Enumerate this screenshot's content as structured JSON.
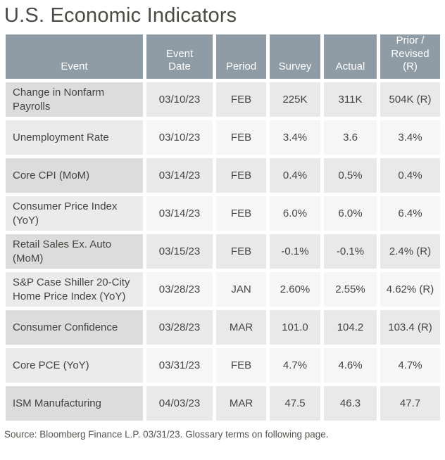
{
  "title": "U.S. Economic Indicators",
  "table": {
    "headers": [
      "Event",
      "Event\nDate",
      "Period",
      "Survey",
      "Actual",
      "Prior /\nRevised\n(R)"
    ],
    "rows": [
      {
        "event": "Change in Nonfarm Payrolls",
        "date": "03/10/23",
        "period": "FEB",
        "survey": "225K",
        "actual": "311K",
        "prior": "504K (R)"
      },
      {
        "event": "Unemployment Rate",
        "date": "03/10/23",
        "period": "FEB",
        "survey": "3.4%",
        "actual": "3.6",
        "prior": "3.4%"
      },
      {
        "event": "Core CPI (MoM)",
        "date": "03/14/23",
        "period": "FEB",
        "survey": "0.4%",
        "actual": "0.5%",
        "prior": "0.4%"
      },
      {
        "event": "Consumer Price Index (YoY)",
        "date": "03/14/23",
        "period": "FEB",
        "survey": "6.0%",
        "actual": "6.0%",
        "prior": "6.4%"
      },
      {
        "event": "Retail Sales Ex. Auto (MoM)",
        "date": "03/15/23",
        "period": "FEB",
        "survey": "-0.1%",
        "actual": "-0.1%",
        "prior": "2.4% (R)"
      },
      {
        "event": "S&P Case Shiller 20-City Home Price Index (YoY)",
        "date": "03/28/23",
        "period": "JAN",
        "survey": "2.60%",
        "actual": "2.55%",
        "prior": "4.62% (R)"
      },
      {
        "event": "Consumer Confidence",
        "date": "03/28/23",
        "period": "MAR",
        "survey": "101.0",
        "actual": "104.2",
        "prior": "103.4 (R)"
      },
      {
        "event": "Core PCE (YoY)",
        "date": "03/31/23",
        "period": "FEB",
        "survey": "4.7%",
        "actual": "4.6%",
        "prior": "4.7%"
      },
      {
        "event": "ISM Manufacturing",
        "date": "04/03/23",
        "period": "MAR",
        "survey": "47.5",
        "actual": "46.3",
        "prior": "47.7"
      }
    ]
  },
  "footer": {
    "source_note": "Source: Bloomberg Finance L.P. 03/31/23. Glossary terms on following page."
  }
}
